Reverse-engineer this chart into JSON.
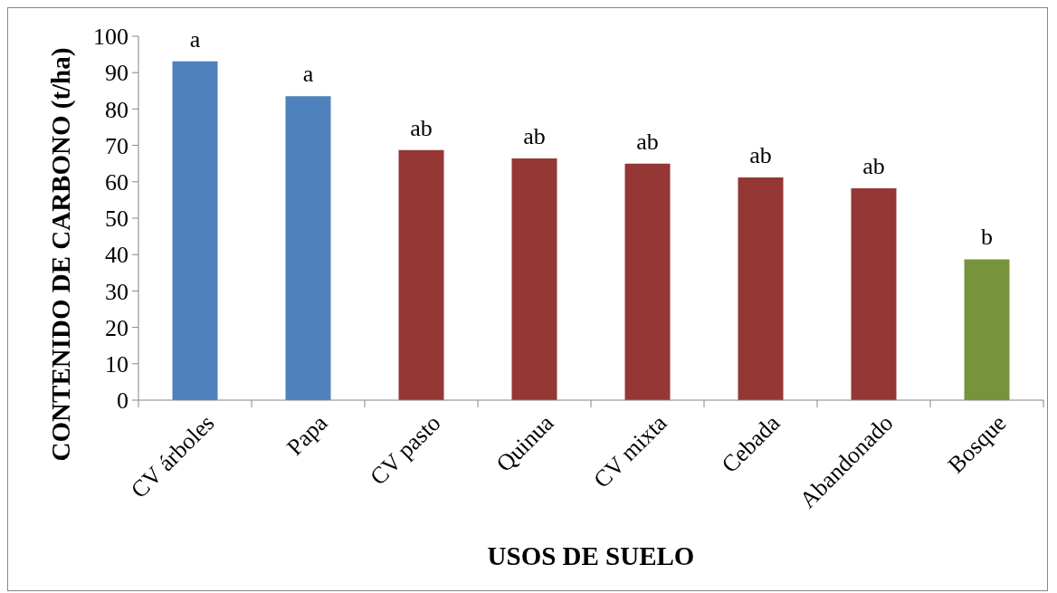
{
  "chart_data": {
    "type": "bar",
    "xlabel": "USOS DE SUELO",
    "ylabel": "CONTENIDO DE CARBONO (t/ha)",
    "categories": [
      "CV árboles",
      "Papa",
      "CV pasto",
      "Quinua",
      "CV mixta",
      "Cebada",
      "Abandonado",
      "Bosque"
    ],
    "values": [
      93.1,
      83.5,
      68.7,
      66.4,
      65.0,
      61.2,
      58.2,
      38.7
    ],
    "colors": [
      "#4f81bd",
      "#4f81bd",
      "#953735",
      "#953735",
      "#953735",
      "#953735",
      "#953735",
      "#77933c"
    ],
    "ylim": [
      0,
      100
    ],
    "yticks": [
      0,
      10,
      20,
      30,
      40,
      50,
      60,
      70,
      80,
      90,
      100
    ],
    "annotations": [
      {
        "text": "a",
        "x": "CV árboles",
        "y": 93.1
      },
      {
        "text": "a",
        "x": "Papa",
        "y": 83.5
      },
      {
        "text": "ab",
        "x": "CV pasto",
        "y": 68.7
      },
      {
        "text": "ab",
        "x": "Quinua",
        "y": 66.4
      },
      {
        "text": "ab",
        "x": "CV mixta",
        "y": 65.0
      },
      {
        "text": "ab",
        "x": "Cebada",
        "y": 61.2
      },
      {
        "text": "ab",
        "x": "Abandonado",
        "y": 58.2
      },
      {
        "text": "b",
        "x": "Bosque",
        "y": 38.7
      }
    ]
  }
}
